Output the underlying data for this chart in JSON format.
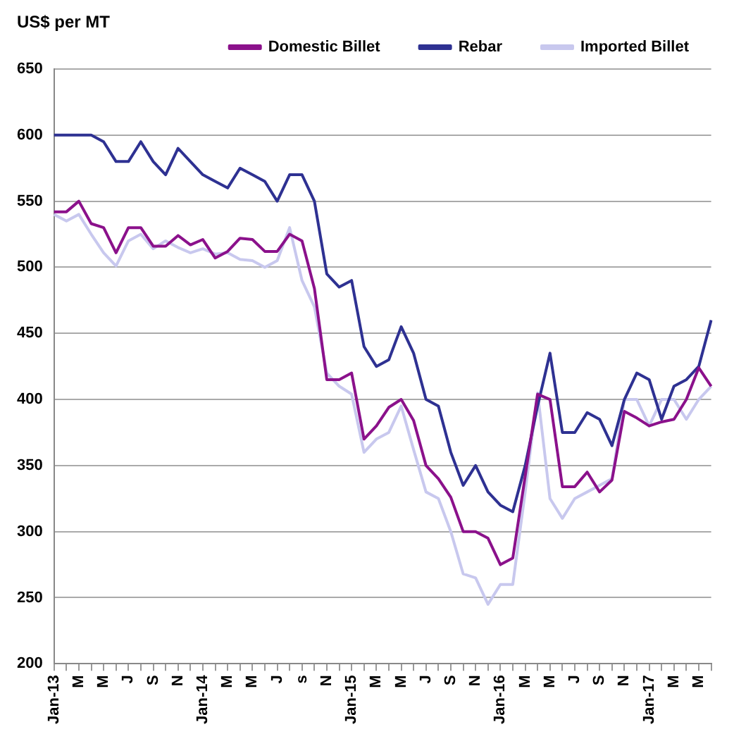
{
  "chart_data": {
    "type": "line",
    "ylabel": "US$ per MT",
    "categories": [
      "Jan-13",
      null,
      "M",
      null,
      "M",
      null,
      "J",
      null,
      "S",
      null,
      "N",
      null,
      "Jan-14",
      null,
      "M",
      null,
      "M",
      null,
      "J",
      null,
      "s",
      null,
      "N",
      null,
      "Jan-15",
      null,
      "M",
      null,
      "M",
      null,
      "J",
      null,
      "S",
      null,
      "N",
      null,
      "Jan-16",
      null,
      "M",
      null,
      "M",
      null,
      "J",
      null,
      "S",
      null,
      "N",
      null,
      "Jan-17",
      null,
      "M",
      null,
      "M",
      null
    ],
    "series": [
      {
        "name": "Domestic Billet",
        "color": "#8b118b",
        "values": [
          542,
          542,
          550,
          533,
          530,
          511,
          530,
          530,
          516,
          516,
          524,
          517,
          521,
          507,
          512,
          522,
          521,
          512,
          512,
          525,
          520,
          484,
          415,
          415,
          420,
          370,
          380,
          394,
          400,
          384,
          350,
          340,
          326,
          300,
          300,
          295,
          275,
          280,
          342,
          404,
          400,
          334,
          334,
          345,
          330,
          339,
          391,
          386,
          380,
          383,
          385,
          400,
          424,
          410
        ]
      },
      {
        "name": "Rebar",
        "color": "#2e3192",
        "values": [
          600,
          600,
          600,
          600,
          595,
          580,
          580,
          595,
          580,
          570,
          590,
          580,
          570,
          565,
          560,
          575,
          570,
          565,
          550,
          570,
          570,
          550,
          495,
          485,
          490,
          440,
          425,
          430,
          455,
          435,
          400,
          395,
          360,
          335,
          350,
          330,
          320,
          315,
          350,
          395,
          435,
          375,
          375,
          390,
          385,
          365,
          400,
          420,
          415,
          385,
          410,
          415,
          425,
          460
        ]
      },
      {
        "name": "Imported Billet",
        "color": "#c8c8ee",
        "values": [
          540,
          535,
          540,
          525,
          511,
          501,
          520,
          525,
          514,
          520,
          515,
          511,
          514,
          510,
          511,
          506,
          505,
          500,
          505,
          530,
          490,
          470,
          420,
          410,
          404,
          360,
          370,
          375,
          395,
          362,
          330,
          325,
          300,
          268,
          265,
          245,
          260,
          260,
          330,
          405,
          325,
          310,
          325,
          330,
          335,
          340,
          400,
          400,
          380,
          400,
          400,
          385,
          400,
          410
        ]
      }
    ],
    "ylim": [
      200,
      650
    ],
    "yticks": [
      200,
      250,
      300,
      350,
      400,
      450,
      500,
      550,
      600,
      650
    ],
    "grid": "y",
    "legend": "top",
    "marker": "none",
    "line_style": "solid"
  }
}
